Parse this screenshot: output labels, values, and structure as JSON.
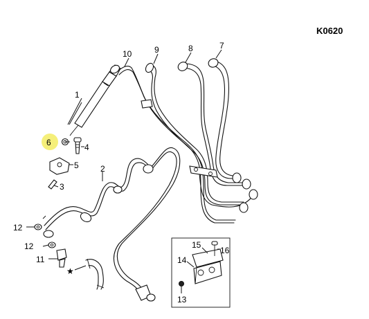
{
  "diagram": {
    "code": "K0620",
    "highlight_color": "#f5ef7a",
    "callouts": [
      {
        "id": "c1",
        "label": "1"
      },
      {
        "id": "c2",
        "label": "2"
      },
      {
        "id": "c3",
        "label": "3"
      },
      {
        "id": "c4",
        "label": "4"
      },
      {
        "id": "c5",
        "label": "5"
      },
      {
        "id": "c6",
        "label": "6"
      },
      {
        "id": "c7",
        "label": "7"
      },
      {
        "id": "c8",
        "label": "8"
      },
      {
        "id": "c9",
        "label": "9"
      },
      {
        "id": "c10",
        "label": "10"
      },
      {
        "id": "c11",
        "label": "11"
      },
      {
        "id": "c12a",
        "label": "12"
      },
      {
        "id": "c12b",
        "label": "12"
      },
      {
        "id": "c13",
        "label": "13"
      },
      {
        "id": "c14",
        "label": "14"
      },
      {
        "id": "c15",
        "label": "15"
      },
      {
        "id": "c16",
        "label": "16"
      },
      {
        "id": "star",
        "label": "★"
      }
    ]
  }
}
